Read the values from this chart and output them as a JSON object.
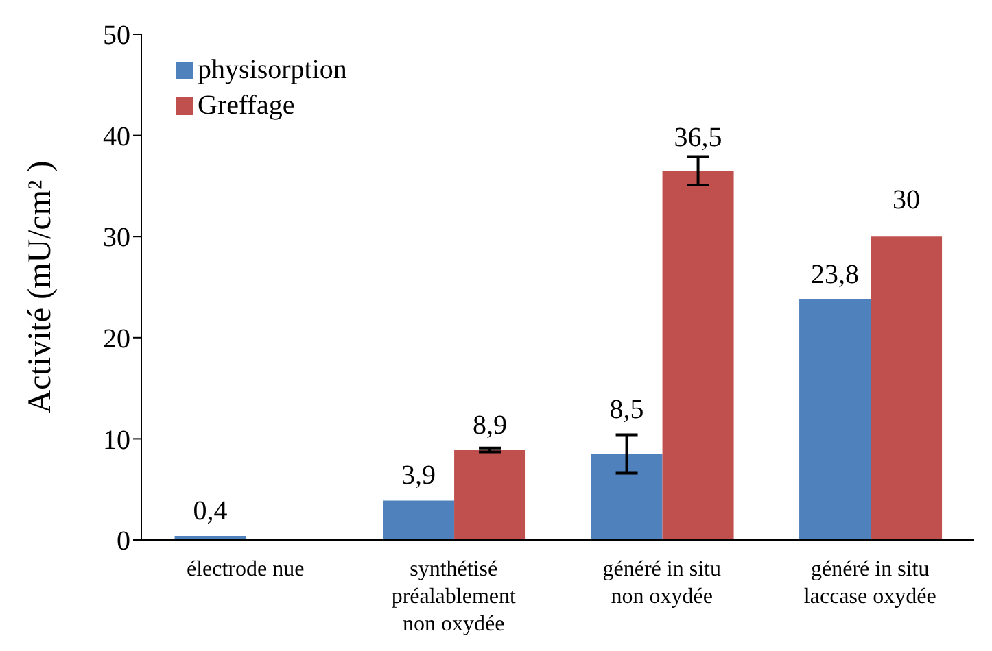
{
  "chart_data": {
    "type": "bar",
    "ylabel": "Activité (mU/cm² )",
    "categories": [
      "électrode nue",
      "synthétisé préalablement non oxydée",
      "généré in situ non oxydée",
      "généré in situ laccase oxydée"
    ],
    "series": [
      {
        "name": "physisorption",
        "color": "#4f81bd",
        "values": [
          0.4,
          3.9,
          8.5,
          23.8
        ],
        "errors": [
          null,
          null,
          1.9,
          null
        ],
        "value_labels": [
          "0,4",
          "3,9",
          "8,5",
          "23,8"
        ]
      },
      {
        "name": "Greffage",
        "color": "#c0504d",
        "values": [
          null,
          8.9,
          36.5,
          30
        ],
        "errors": [
          null,
          0.2,
          1.4,
          null
        ],
        "value_labels": [
          null,
          "8,9",
          "36,5",
          "30"
        ]
      }
    ],
    "ylim": [
      0,
      50
    ],
    "yticks": [
      0,
      10,
      20,
      30,
      40,
      50
    ],
    "legend": "top left"
  }
}
